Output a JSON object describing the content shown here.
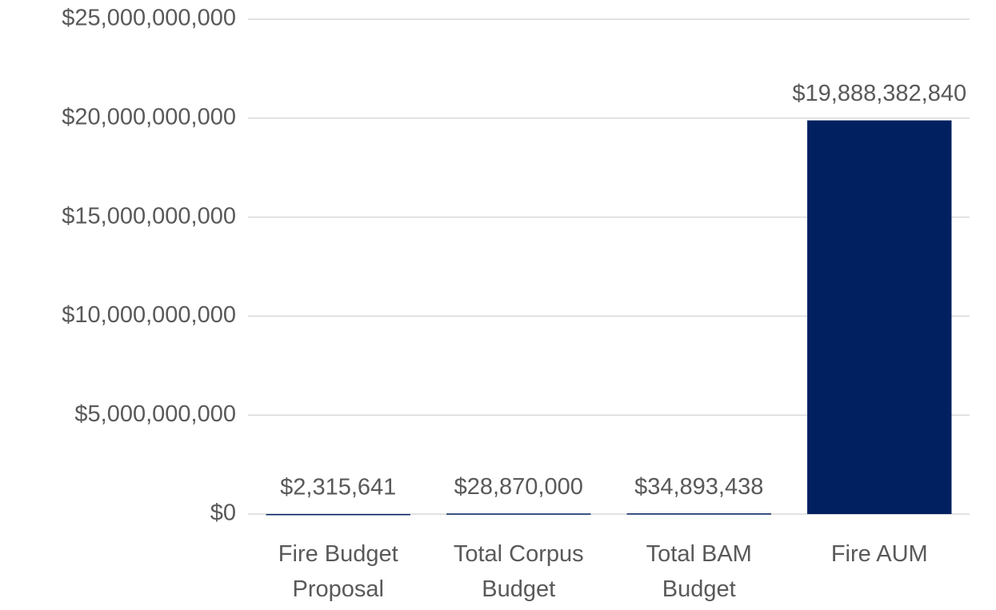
{
  "chart_data": {
    "type": "bar",
    "categories": [
      "Fire Budget Proposal",
      "Total Corpus Budget",
      "Total BAM Budget",
      "Fire AUM"
    ],
    "values": [
      2315641,
      28870000,
      34893438,
      19888382840
    ],
    "value_labels": [
      "$2,315,641",
      "$28,870,000",
      "$34,893,438",
      "$19,888,382,840"
    ],
    "color": "#002060",
    "ylim": [
      0,
      25000000000
    ],
    "yticks": [
      {
        "value": 0,
        "label": "$0"
      },
      {
        "value": 5000000000,
        "label": "$5,000,000,000"
      },
      {
        "value": 10000000000,
        "label": "$10,000,000,000"
      },
      {
        "value": 15000000000,
        "label": "$15,000,000,000"
      },
      {
        "value": 20000000000,
        "label": "$20,000,000,000"
      },
      {
        "value": 25000000000,
        "label": "$25,000,000,000"
      }
    ],
    "grid": true
  }
}
